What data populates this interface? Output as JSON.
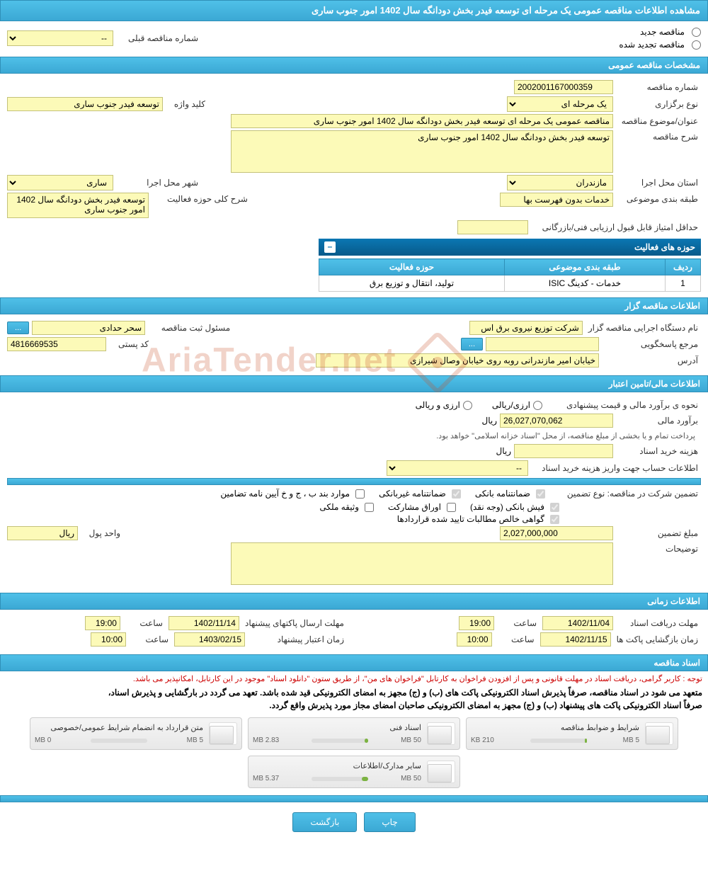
{
  "page_title": "مشاهده اطلاعات مناقصه عمومی یک مرحله ای توسعه فیدر بخش دودانگه سال 1402 امور جنوب ساری",
  "radios": {
    "new_tender": "مناقصه جدید",
    "renewed_tender": "مناقصه تجدید شده"
  },
  "prev_tender": {
    "label": "شماره مناقصه قبلی",
    "value": "--"
  },
  "sections": {
    "general": "مشخصات مناقصه عمومی",
    "organizer": "اطلاعات مناقصه گزار",
    "financial": "اطلاعات مالی/تامین اعتبار",
    "timing": "اطلاعات زمانی",
    "documents": "اسناد مناقصه"
  },
  "general": {
    "tender_no_label": "شماره مناقصه",
    "tender_no": "2002001167000359",
    "type_label": "نوع برگزاری",
    "type": "یک مرحله ای",
    "keyword_label": "کلید واژه",
    "keyword": "توسعه فیدر جنوب ساری",
    "subject_label": "عنوان/موضوع مناقصه",
    "subject": "مناقصه عمومی یک مرحله ای توسعه فیدر بخش دودانگه سال 1402 امور جنوب ساری",
    "desc_label": "شرح مناقصه",
    "desc": "توسعه فیدر بخش دودانگه سال 1402 امور جنوب ساری",
    "province_label": "استان محل اجرا",
    "province": "مازندران",
    "city_label": "شهر محل اجرا",
    "city": "ساری",
    "category_label": "طبقه بندی موضوعی",
    "category": "خدمات بدون فهرست بها",
    "scope_label": "شرح کلی حوزه فعالیت",
    "scope": "توسعه فیدر بخش دودانگه سال 1402 امور جنوب ساری",
    "min_score_label": "حداقل امتیاز قابل قبول ارزیابی فنی/بازرگانی",
    "min_score": ""
  },
  "activity": {
    "header": "حوزه های فعالیت",
    "cols": {
      "row": "ردیف",
      "category": "طبقه بندی موضوعی",
      "scope": "حوزه فعالیت"
    },
    "rows": [
      {
        "n": "1",
        "category": "خدمات - کدینگ ISIC",
        "scope": "تولید، انتقال و توزیع برق"
      }
    ]
  },
  "organizer": {
    "exec_label": "نام دستگاه اجرایی مناقصه گزار",
    "exec": "شرکت توزیع نیروی برق اس",
    "registrar_label": "مسئول ثبت مناقصه",
    "registrar": "سحر حدادی",
    "responder_label": "مرجع پاسخگویی",
    "responder": "",
    "postal_label": "کد پستی",
    "postal": "4816669535",
    "address_label": "آدرس",
    "address": "خیابان امیر مازندرانی روبه روی خیابان وصال شیرازی"
  },
  "financial": {
    "method_label": "نحوه ی برآورد مالی و قیمت پیشنهادی",
    "method_opts": {
      "rial": "ارزی/ریالی",
      "currency": "ارزی و ریالی"
    },
    "estimate_label": "برآورد مالی",
    "estimate": "26,027,070,062",
    "unit": "ریال",
    "treasury_note": "پرداخت تمام و یا بخشی از مبلغ مناقصه، از محل \"اسناد خزانه اسلامی\" خواهد بود.",
    "doc_cost_label": "هزینه خرید اسناد",
    "doc_cost": "",
    "account_label": "اطلاعات حساب جهت واریز هزینه خرید اسناد",
    "account": "--",
    "guarantee_label": "تضمین شرکت در مناقصه:   نوع تضمین",
    "cb": {
      "bank_guarantee": "ضمانتنامه بانکی",
      "nonbank_guarantee": "ضمانتنامه غیربانکی",
      "bylaw": "موارد بند ب ، ج و خ آیین نامه تضامین",
      "bank_receipt": "فیش بانکی (وجه نقد)",
      "bonds": "اوراق مشارکت",
      "property": "وثیقه ملکی",
      "net_cert": "گواهی خالص مطالبات تایید شده قراردادها"
    },
    "guarantee_amount_label": "مبلغ تضمین",
    "guarantee_amount": "2,027,000,000",
    "currency_unit_label": "واحد پول",
    "currency_unit": "ریال",
    "notes_label": "توضیحات",
    "notes": ""
  },
  "timing": {
    "receive_deadline_label": "مهلت دریافت اسناد",
    "receive_deadline": "1402/11/04",
    "receive_time_label": "ساعت",
    "receive_time": "19:00",
    "send_deadline_label": "مهلت ارسال پاکتهای پیشنهاد",
    "send_deadline": "1402/11/14",
    "send_time_label": "ساعت",
    "send_time": "19:00",
    "open_label": "زمان بازگشایی پاکت ها",
    "open_date": "1402/11/15",
    "open_time_label": "ساعت",
    "open_time": "10:00",
    "validity_label": "زمان اعتبار پیشنهاد",
    "validity_date": "1403/02/15",
    "validity_time_label": "ساعت",
    "validity_time": "10:00"
  },
  "docs": {
    "note_red": "توجه : کاربر گرامی، دریافت اسناد در مهلت قانونی و پس از افزودن فراخوان به کارتابل \"فراخوان های من\"، از طریق ستون \"دانلود اسناد\" موجود در این کارتابل، امکانپذیر می باشد.",
    "note1": "متعهد می شود در اسناد مناقصه، صرفاً پذیرش اسناد الکترونیکی پاکت های (ب) و (ج) مجهز به امضای الکترونیکی قید شده باشد. تعهد می گردد در بارگشایی و پذیرش اسناد،",
    "note2": "صرفاً اسناد الکترونیکی پاکت های پیشنهاد (ب) و (ج) مجهز به امضای الکترونیکی صاحبان امضای مجاز مورد پذیرش واقع گردد.",
    "files": [
      {
        "title": "شرایط و ضوابط مناقصه",
        "used": "210 KB",
        "max": "5 MB",
        "pct": 4
      },
      {
        "title": "اسناد فنی",
        "used": "2.83 MB",
        "max": "50 MB",
        "pct": 6
      },
      {
        "title": "متن قرارداد به انضمام شرایط عمومی/خصوصی",
        "used": "0 MB",
        "max": "5 MB",
        "pct": 0
      },
      {
        "title": "سایر مدارک/اطلاعات",
        "used": "5.37 MB",
        "max": "50 MB",
        "pct": 11
      }
    ]
  },
  "buttons": {
    "print": "چاپ",
    "back": "بازگشت",
    "more": "..."
  },
  "watermark": "AriaTender.net",
  "colors": {
    "header_bg": "#4fc0e8",
    "input_bg": "#fcfab8",
    "border": "#3090b8"
  }
}
